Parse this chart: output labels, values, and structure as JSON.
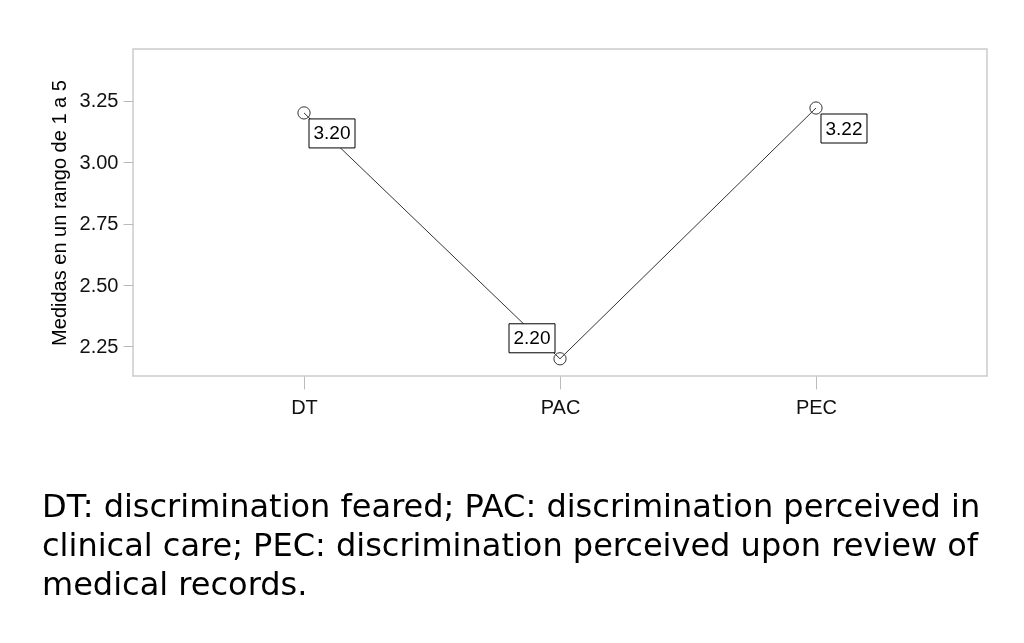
{
  "chart_data": {
    "type": "line",
    "ylabel": "Medidas en un rango de 1 a 5",
    "categories": [
      "DT",
      "PAC",
      "PEC"
    ],
    "series": [
      {
        "color": "#333333",
        "values": [
          3.2,
          2.2,
          3.22
        ],
        "value_labels": [
          "3.20",
          "2.20",
          "3.22"
        ]
      }
    ],
    "ylim": [
      2.13,
      3.46
    ],
    "yticks": [
      2.25,
      {
        "value": 2.5,
        "label": "2.50"
      },
      2.75,
      {
        "value": 3,
        "label": "3.00"
      },
      3.25
    ],
    "marker": "circle",
    "line_style": "solid",
    "grid": false,
    "annotations": [
      "DT: discrimination feared; PAC: discrimination perceived in clinical care; PEC: discrimination perceived upon review of medical records."
    ]
  }
}
